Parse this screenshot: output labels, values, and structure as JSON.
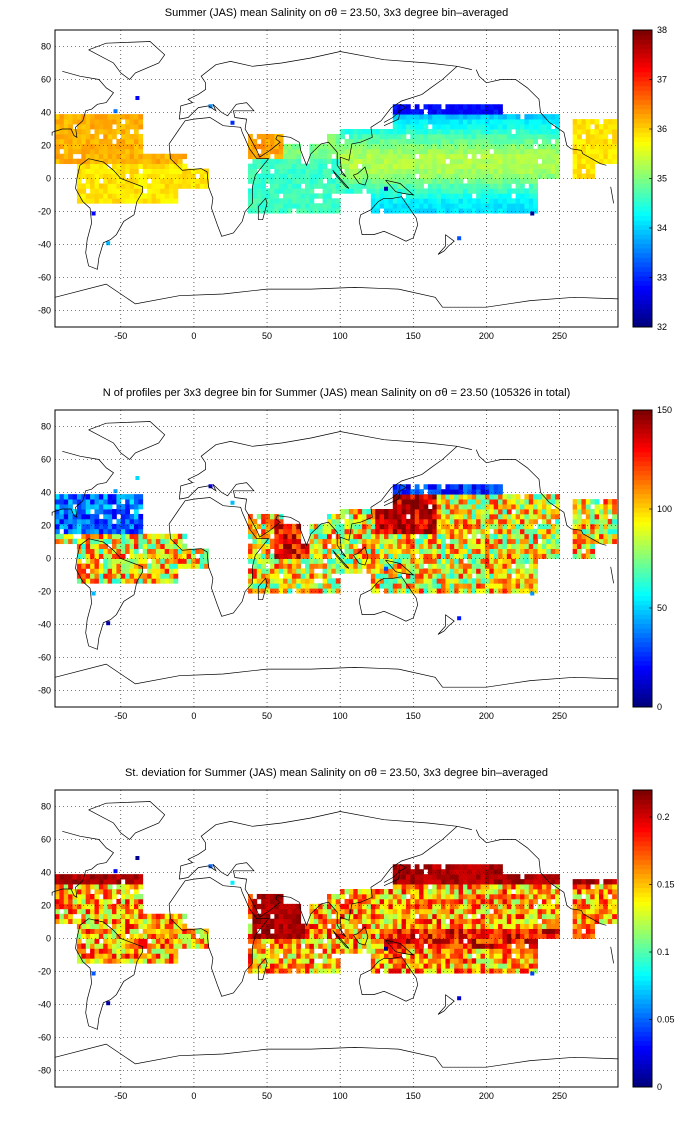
{
  "chart_data": [
    {
      "type": "heatmap",
      "title": "Summer (JAS) mean Salinity on σθ = 23.50, 3x3 degree bin–averaged",
      "xticks": [
        "-50",
        "0",
        "50",
        "100",
        "150",
        "200",
        "250"
      ],
      "yticks": [
        "80",
        "60",
        "40",
        "20",
        "0",
        "-20",
        "-40",
        "-60",
        "-80"
      ],
      "xlim": [
        -95,
        290
      ],
      "ylim": [
        -90,
        90
      ],
      "grid": true,
      "colorbar": {
        "min": 32,
        "max": 38,
        "ticks": [
          "38",
          "37",
          "36",
          "35",
          "34",
          "33",
          "32"
        ]
      }
    },
    {
      "type": "heatmap",
      "title": "N of profiles per 3x3 degree bin for Summer (JAS) mean Salinity on σθ = 23.50 (105326 in total)",
      "xticks": [
        "-50",
        "0",
        "50",
        "100",
        "150",
        "200",
        "250"
      ],
      "yticks": [
        "80",
        "60",
        "40",
        "20",
        "0",
        "-20",
        "-40",
        "-60",
        "-80"
      ],
      "xlim": [
        -95,
        290
      ],
      "ylim": [
        -90,
        90
      ],
      "grid": true,
      "colorbar": {
        "min": 0,
        "max": 150,
        "ticks": [
          "150",
          "100",
          "50",
          "0"
        ]
      }
    },
    {
      "type": "heatmap",
      "title": "St. deviation for Summer (JAS) mean Salinity on σθ = 23.50, 3x3 degree bin–averaged",
      "xticks": [
        "-50",
        "0",
        "50",
        "100",
        "150",
        "200",
        "250"
      ],
      "yticks": [
        "80",
        "60",
        "40",
        "20",
        "0",
        "-20",
        "-40",
        "-60",
        "-80"
      ],
      "xlim": [
        -95,
        290
      ],
      "ylim": [
        -90,
        90
      ],
      "grid": true,
      "colorbar": {
        "min": 0,
        "max": 0.22,
        "ticks": [
          "0.2",
          "0.15",
          "0.1",
          "0.05",
          "0"
        ]
      }
    }
  ]
}
